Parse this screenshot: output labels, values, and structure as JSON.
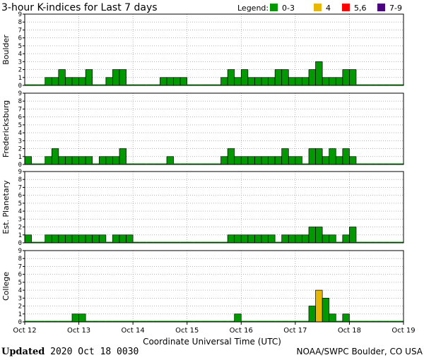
{
  "chart_data": {
    "type": "bar",
    "title": "3-hour K-indices for Last 7 days",
    "legend_label": "Legend:",
    "legend": [
      {
        "label": "0-3",
        "color": "#009900"
      },
      {
        "label": "4",
        "color": "#e8b800"
      },
      {
        "label": "5,6",
        "color": "#ff0000"
      },
      {
        "label": "7-9",
        "color": "#4b0082"
      }
    ],
    "xlabel": "Coordinate Universal Time (UTC)",
    "x_ticks": [
      "Oct 12",
      "Oct 13",
      "Oct 14",
      "Oct 15",
      "Oct 16",
      "Oct 17",
      "Oct 18",
      "Oct 19"
    ],
    "ylim": [
      0,
      9
    ],
    "y_ticks": [
      "0",
      "1",
      "2",
      "3",
      "4",
      "5",
      "6",
      "7",
      "8",
      "9"
    ],
    "grid": true,
    "panels": [
      {
        "name": "Boulder",
        "values": [
          0,
          0,
          0,
          1,
          1,
          2,
          1,
          1,
          1,
          2,
          0,
          0,
          1,
          2,
          2,
          0,
          0,
          0,
          0,
          0,
          1,
          1,
          1,
          1,
          0,
          0,
          0,
          0,
          0,
          1,
          2,
          1,
          2,
          1,
          1,
          1,
          1,
          2,
          2,
          1,
          1,
          1,
          2,
          3,
          1,
          1,
          1,
          2,
          2,
          0,
          0,
          0,
          0,
          0,
          0,
          0
        ]
      },
      {
        "name": "Fredericksburg",
        "values": [
          1,
          0,
          0,
          1,
          2,
          1,
          1,
          1,
          1,
          1,
          0,
          1,
          1,
          1,
          2,
          0,
          0,
          0,
          0,
          0,
          0,
          1,
          0,
          0,
          0,
          0,
          0,
          0,
          0,
          1,
          2,
          1,
          1,
          1,
          1,
          1,
          1,
          1,
          2,
          1,
          1,
          0,
          2,
          2,
          1,
          2,
          1,
          2,
          1,
          0,
          0,
          0,
          0,
          0,
          0,
          0
        ]
      },
      {
        "name": "Est. Planetary",
        "values": [
          1,
          0,
          0,
          1,
          1,
          1,
          1,
          1,
          1,
          1,
          1,
          1,
          0,
          1,
          1,
          1,
          0,
          0,
          0,
          0,
          0,
          0,
          0,
          0,
          0,
          0,
          0,
          0,
          0,
          0,
          1,
          1,
          1,
          1,
          1,
          1,
          1,
          0,
          1,
          1,
          1,
          1,
          2,
          2,
          1,
          1,
          0,
          1,
          2,
          0,
          0,
          0,
          0,
          0,
          0,
          0
        ]
      },
      {
        "name": "College",
        "values": [
          0,
          0,
          0,
          0,
          0,
          0,
          0,
          1,
          1,
          0,
          0,
          0,
          0,
          0,
          0,
          0,
          0,
          0,
          0,
          0,
          0,
          0,
          0,
          0,
          0,
          0,
          0,
          0,
          0,
          0,
          0,
          1,
          0,
          0,
          0,
          0,
          0,
          0,
          0,
          0,
          0,
          0,
          2,
          4,
          3,
          1,
          0,
          1,
          0,
          0,
          0,
          0,
          0,
          0,
          0,
          0
        ]
      }
    ]
  },
  "footer": {
    "updated_label": "Updated",
    "updated_value": "2020 Oct 18 0030",
    "source": "NOAA/SWPC Boulder, CO USA"
  }
}
